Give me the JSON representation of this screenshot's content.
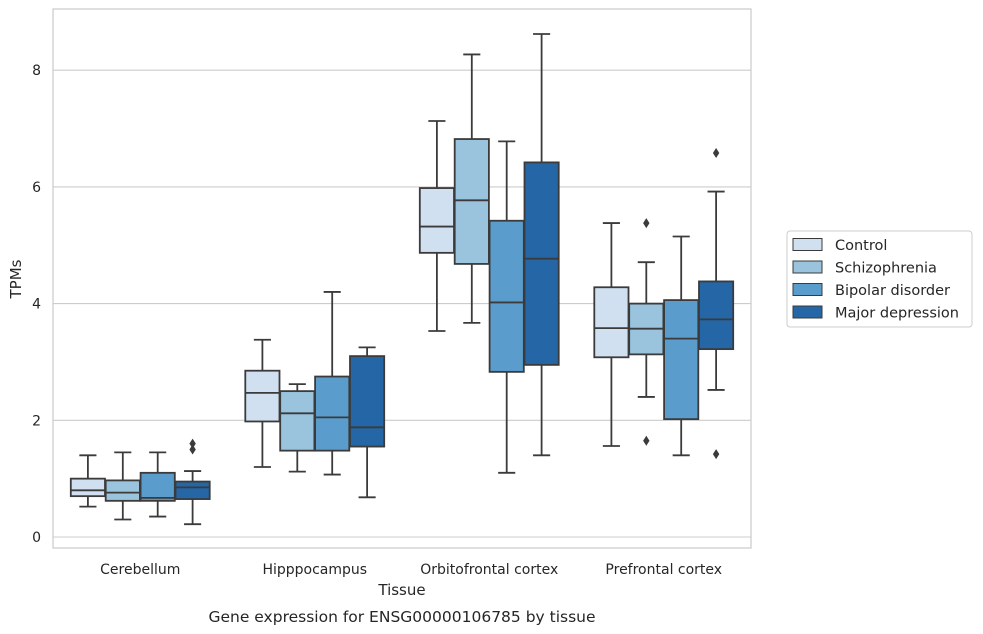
{
  "chart_data": {
    "type": "box",
    "title": "",
    "caption": "Gene expression for ENSG00000106785 by tissue",
    "xlabel": "Tissue",
    "ylabel": "TPMs",
    "ylim": [
      -0.2,
      9.1
    ],
    "yticks": [
      0,
      2,
      4,
      6,
      8
    ],
    "grid": "horizontal",
    "legend_position": "right",
    "categories": [
      "Cerebellum",
      "Hipppocampus",
      "Orbitofrontal cortex",
      "Prefrontal cortex"
    ],
    "series": [
      {
        "name": "Control",
        "color": "#d0e0f0",
        "boxes": [
          {
            "whisker_low": 0.52,
            "q1": 0.7,
            "median": 0.8,
            "q3": 1.0,
            "whisker_high": 1.4,
            "outliers": []
          },
          {
            "whisker_low": 1.2,
            "q1": 1.98,
            "median": 2.47,
            "q3": 2.85,
            "whisker_high": 3.38,
            "outliers": []
          },
          {
            "whisker_low": 3.53,
            "q1": 4.87,
            "median": 5.32,
            "q3": 5.98,
            "whisker_high": 7.13,
            "outliers": []
          },
          {
            "whisker_low": 1.56,
            "q1": 3.08,
            "median": 3.58,
            "q3": 4.28,
            "whisker_high": 5.38,
            "outliers": []
          }
        ]
      },
      {
        "name": "Schizophrenia",
        "color": "#9ac3de",
        "boxes": [
          {
            "whisker_low": 0.3,
            "q1": 0.62,
            "median": 0.76,
            "q3": 0.97,
            "whisker_high": 1.45,
            "outliers": []
          },
          {
            "whisker_low": 1.12,
            "q1": 1.48,
            "median": 2.12,
            "q3": 2.5,
            "whisker_high": 2.62,
            "outliers": []
          },
          {
            "whisker_low": 3.67,
            "q1": 4.68,
            "median": 5.77,
            "q3": 6.82,
            "whisker_high": 8.27,
            "outliers": []
          },
          {
            "whisker_low": 2.4,
            "q1": 3.13,
            "median": 3.57,
            "q3": 4.0,
            "whisker_high": 4.71,
            "outliers": [
              1.65,
              5.38
            ]
          }
        ]
      },
      {
        "name": "Bipolar disorder",
        "color": "#5a9ccc",
        "boxes": [
          {
            "whisker_low": 0.35,
            "q1": 0.62,
            "median": 0.67,
            "q3": 1.1,
            "whisker_high": 1.45,
            "outliers": []
          },
          {
            "whisker_low": 1.07,
            "q1": 1.48,
            "median": 2.05,
            "q3": 2.75,
            "whisker_high": 4.2,
            "outliers": []
          },
          {
            "whisker_low": 1.1,
            "q1": 2.83,
            "median": 4.02,
            "q3": 5.42,
            "whisker_high": 6.78,
            "outliers": []
          },
          {
            "whisker_low": 1.4,
            "q1": 2.02,
            "median": 3.4,
            "q3": 4.06,
            "whisker_high": 5.15,
            "outliers": []
          }
        ]
      },
      {
        "name": "Major depression",
        "color": "#2466a6",
        "boxes": [
          {
            "whisker_low": 0.22,
            "q1": 0.65,
            "median": 0.85,
            "q3": 0.95,
            "whisker_high": 1.13,
            "outliers": [
              1.5,
              1.6
            ]
          },
          {
            "whisker_low": 0.68,
            "q1": 1.55,
            "median": 1.88,
            "q3": 3.1,
            "whisker_high": 3.25,
            "outliers": []
          },
          {
            "whisker_low": 1.4,
            "q1": 2.95,
            "median": 4.77,
            "q3": 6.42,
            "whisker_high": 8.62,
            "outliers": []
          },
          {
            "whisker_low": 2.52,
            "q1": 3.22,
            "median": 3.73,
            "q3": 4.38,
            "whisker_high": 5.92,
            "outliers": [
              1.42,
              6.58
            ]
          }
        ]
      }
    ]
  }
}
